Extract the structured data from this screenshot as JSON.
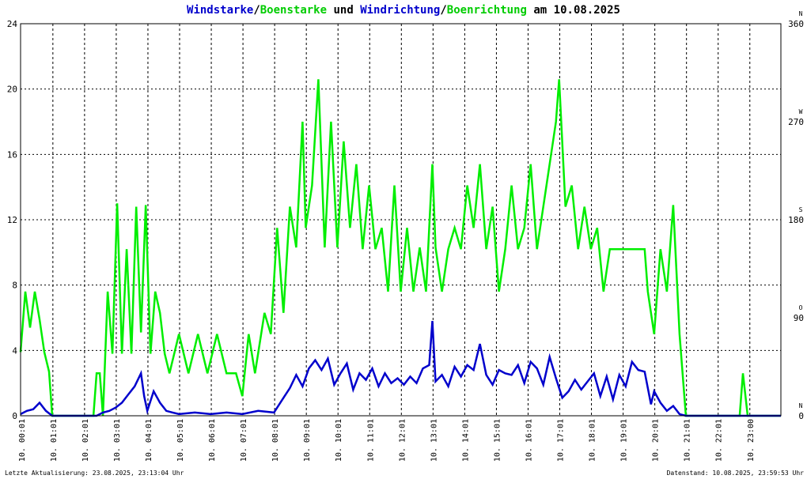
{
  "title": {
    "part1": "Windstarke",
    "sep1": "/",
    "part2": "Boenstarke",
    "mid": " und ",
    "part3": "Windrichtung",
    "sep2": "/",
    "part4": "Boenrichtung",
    "tail": " am 10.08.2025"
  },
  "colors": {
    "wind": "#0000cc",
    "gust": "#00ee00",
    "grid": "#000000",
    "bg": "#ffffff"
  },
  "footer": {
    "left": "Letzte Aktualisierung: 23.08.2025, 23:13:04 Uhr",
    "right": "Datenstand: 10.08.2025, 23:59:53 Uhr"
  },
  "chart_data": {
    "type": "line",
    "title": "Windstarke/Boenstarke und Windrichtung/Boenrichtung am 10.08.2025",
    "x_range_hours": [
      0,
      24
    ],
    "x_ticks": [
      "10. 00:01",
      "10. 01:01",
      "10. 02:01",
      "10. 03:01",
      "10. 04:01",
      "10. 05:01",
      "10. 06:01",
      "10. 07:01",
      "10. 08:01",
      "10. 09:01",
      "10. 10:01",
      "10. 11:01",
      "10. 12:01",
      "10. 13:01",
      "10. 14:01",
      "10. 15:01",
      "10. 16:01",
      "10. 17:01",
      "10. 18:01",
      "10. 19:01",
      "10. 20:01",
      "10. 21:01",
      "10. 22:01",
      "10. 23:00"
    ],
    "y_left": {
      "ticks": [
        "0",
        "4",
        "8",
        "12",
        "16",
        "20",
        "24"
      ],
      "ylim": [
        0,
        24
      ]
    },
    "y_right": {
      "ticks": [
        "0",
        "90",
        "180",
        "270",
        "360"
      ],
      "ylim": [
        0,
        360
      ],
      "compass": [
        "N",
        "O",
        "S",
        "W",
        "N"
      ]
    },
    "series": [
      {
        "name": "Windstarke",
        "color": "#0000cc",
        "points": [
          [
            0,
            0.1
          ],
          [
            0.2,
            0.3
          ],
          [
            0.4,
            0.4
          ],
          [
            0.6,
            0.8
          ],
          [
            0.8,
            0.3
          ],
          [
            1.0,
            0
          ],
          [
            2.4,
            0
          ],
          [
            2.6,
            0.2
          ],
          [
            2.8,
            0.3
          ],
          [
            3.0,
            0.5
          ],
          [
            3.2,
            0.8
          ],
          [
            3.4,
            1.3
          ],
          [
            3.6,
            1.8
          ],
          [
            3.8,
            2.6
          ],
          [
            3.9,
            1.2
          ],
          [
            4.0,
            0.3
          ],
          [
            4.2,
            1.5
          ],
          [
            4.4,
            0.8
          ],
          [
            4.6,
            0.3
          ],
          [
            4.8,
            0.2
          ],
          [
            5.0,
            0.1
          ],
          [
            5.5,
            0.2
          ],
          [
            6.0,
            0.1
          ],
          [
            6.5,
            0.2
          ],
          [
            7.0,
            0.1
          ],
          [
            7.5,
            0.3
          ],
          [
            8.0,
            0.2
          ],
          [
            8.3,
            1.1
          ],
          [
            8.5,
            1.7
          ],
          [
            8.7,
            2.5
          ],
          [
            8.9,
            1.8
          ],
          [
            9.1,
            2.9
          ],
          [
            9.3,
            3.4
          ],
          [
            9.5,
            2.8
          ],
          [
            9.7,
            3.5
          ],
          [
            9.9,
            1.9
          ],
          [
            10.1,
            2.6
          ],
          [
            10.3,
            3.2
          ],
          [
            10.5,
            1.6
          ],
          [
            10.7,
            2.6
          ],
          [
            10.9,
            2.2
          ],
          [
            11.1,
            2.9
          ],
          [
            11.3,
            1.8
          ],
          [
            11.5,
            2.6
          ],
          [
            11.7,
            2.0
          ],
          [
            11.9,
            2.3
          ],
          [
            12.1,
            1.9
          ],
          [
            12.3,
            2.4
          ],
          [
            12.5,
            2.0
          ],
          [
            12.7,
            2.9
          ],
          [
            12.9,
            3.1
          ],
          [
            13.0,
            5.8
          ],
          [
            13.1,
            2.1
          ],
          [
            13.3,
            2.5
          ],
          [
            13.5,
            1.8
          ],
          [
            13.7,
            3.0
          ],
          [
            13.9,
            2.4
          ],
          [
            14.1,
            3.1
          ],
          [
            14.3,
            2.8
          ],
          [
            14.5,
            4.4
          ],
          [
            14.7,
            2.5
          ],
          [
            14.9,
            1.9
          ],
          [
            15.1,
            2.8
          ],
          [
            15.3,
            2.6
          ],
          [
            15.5,
            2.5
          ],
          [
            15.7,
            3.1
          ],
          [
            15.9,
            2.0
          ],
          [
            16.1,
            3.3
          ],
          [
            16.3,
            2.9
          ],
          [
            16.5,
            1.9
          ],
          [
            16.7,
            3.6
          ],
          [
            16.9,
            2.3
          ],
          [
            17.1,
            1.1
          ],
          [
            17.3,
            1.5
          ],
          [
            17.5,
            2.2
          ],
          [
            17.7,
            1.6
          ],
          [
            17.9,
            2.1
          ],
          [
            18.1,
            2.6
          ],
          [
            18.3,
            1.2
          ],
          [
            18.5,
            2.4
          ],
          [
            18.7,
            1.0
          ],
          [
            18.9,
            2.5
          ],
          [
            19.1,
            1.8
          ],
          [
            19.3,
            3.3
          ],
          [
            19.5,
            2.8
          ],
          [
            19.7,
            2.7
          ],
          [
            19.9,
            0.7
          ],
          [
            20.0,
            1.5
          ],
          [
            20.2,
            0.8
          ],
          [
            20.4,
            0.3
          ],
          [
            20.6,
            0.6
          ],
          [
            20.8,
            0.1
          ],
          [
            21.0,
            0
          ],
          [
            24.0,
            0
          ]
        ]
      },
      {
        "name": "Boenstarke",
        "color": "#00ee00",
        "points": [
          [
            0,
            3.9
          ],
          [
            0.15,
            7.6
          ],
          [
            0.3,
            5.4
          ],
          [
            0.45,
            7.6
          ],
          [
            0.6,
            5.9
          ],
          [
            0.75,
            3.9
          ],
          [
            0.9,
            2.7
          ],
          [
            1.0,
            0
          ],
          [
            2.3,
            0
          ],
          [
            2.4,
            2.6
          ],
          [
            2.5,
            2.6
          ],
          [
            2.6,
            0
          ],
          [
            2.75,
            7.6
          ],
          [
            2.9,
            3.8
          ],
          [
            3.05,
            13.0
          ],
          [
            3.2,
            3.8
          ],
          [
            3.35,
            10.2
          ],
          [
            3.5,
            3.8
          ],
          [
            3.65,
            12.8
          ],
          [
            3.8,
            5.1
          ],
          [
            3.95,
            12.9
          ],
          [
            4.1,
            3.8
          ],
          [
            4.25,
            7.6
          ],
          [
            4.4,
            6.3
          ],
          [
            4.55,
            3.8
          ],
          [
            4.7,
            2.6
          ],
          [
            5.0,
            5.0
          ],
          [
            5.3,
            2.6
          ],
          [
            5.6,
            5.0
          ],
          [
            5.9,
            2.6
          ],
          [
            6.2,
            5.0
          ],
          [
            6.5,
            2.6
          ],
          [
            6.8,
            2.6
          ],
          [
            7.0,
            1.2
          ],
          [
            7.2,
            5.0
          ],
          [
            7.4,
            2.6
          ],
          [
            7.7,
            6.3
          ],
          [
            7.9,
            5.0
          ],
          [
            8.1,
            11.5
          ],
          [
            8.3,
            6.3
          ],
          [
            8.5,
            12.8
          ],
          [
            8.7,
            10.3
          ],
          [
            8.9,
            18.0
          ],
          [
            9.0,
            11.5
          ],
          [
            9.2,
            14.1
          ],
          [
            9.4,
            20.6
          ],
          [
            9.6,
            10.3
          ],
          [
            9.8,
            18.0
          ],
          [
            10.0,
            10.3
          ],
          [
            10.2,
            16.8
          ],
          [
            10.4,
            11.5
          ],
          [
            10.6,
            15.4
          ],
          [
            10.8,
            10.2
          ],
          [
            11.0,
            14.1
          ],
          [
            11.2,
            10.2
          ],
          [
            11.4,
            11.5
          ],
          [
            11.6,
            7.6
          ],
          [
            11.8,
            14.1
          ],
          [
            12.0,
            7.6
          ],
          [
            12.2,
            11.5
          ],
          [
            12.4,
            7.6
          ],
          [
            12.6,
            10.3
          ],
          [
            12.8,
            7.6
          ],
          [
            13.0,
            15.4
          ],
          [
            13.1,
            10.3
          ],
          [
            13.3,
            7.6
          ],
          [
            13.5,
            10.2
          ],
          [
            13.7,
            11.5
          ],
          [
            13.9,
            10.2
          ],
          [
            14.1,
            14.1
          ],
          [
            14.3,
            11.5
          ],
          [
            14.5,
            15.4
          ],
          [
            14.7,
            10.2
          ],
          [
            14.9,
            12.8
          ],
          [
            15.1,
            7.6
          ],
          [
            15.3,
            10.2
          ],
          [
            15.5,
            14.1
          ],
          [
            15.7,
            10.2
          ],
          [
            15.9,
            11.5
          ],
          [
            16.1,
            15.4
          ],
          [
            16.3,
            10.2
          ],
          [
            16.5,
            12.8
          ],
          [
            16.7,
            15.4
          ],
          [
            16.9,
            18.0
          ],
          [
            17.0,
            20.6
          ],
          [
            17.2,
            12.8
          ],
          [
            17.4,
            14.1
          ],
          [
            17.6,
            10.2
          ],
          [
            17.8,
            12.8
          ],
          [
            18.0,
            10.2
          ],
          [
            18.2,
            11.5
          ],
          [
            18.4,
            7.6
          ],
          [
            18.6,
            10.2
          ],
          [
            18.8,
            10.2
          ],
          [
            19.2,
            10.2
          ],
          [
            19.5,
            10.2
          ],
          [
            19.7,
            10.2
          ],
          [
            19.8,
            7.6
          ],
          [
            20.0,
            5.0
          ],
          [
            20.2,
            10.2
          ],
          [
            20.4,
            7.6
          ],
          [
            20.6,
            12.9
          ],
          [
            20.8,
            5.0
          ],
          [
            21.0,
            0
          ],
          [
            22.7,
            0
          ],
          [
            22.8,
            2.6
          ],
          [
            22.95,
            0
          ],
          [
            24.0,
            0
          ]
        ]
      }
    ]
  }
}
